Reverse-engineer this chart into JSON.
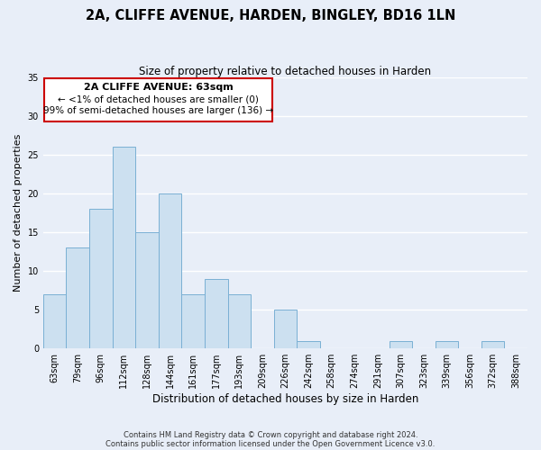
{
  "title": "2A, CLIFFE AVENUE, HARDEN, BINGLEY, BD16 1LN",
  "subtitle": "Size of property relative to detached houses in Harden",
  "xlabel": "Distribution of detached houses by size in Harden",
  "ylabel": "Number of detached properties",
  "bar_color": "#cce0f0",
  "bar_edge_color": "#7ab0d4",
  "bin_labels": [
    "63sqm",
    "79sqm",
    "96sqm",
    "112sqm",
    "128sqm",
    "144sqm",
    "161sqm",
    "177sqm",
    "193sqm",
    "209sqm",
    "226sqm",
    "242sqm",
    "258sqm",
    "274sqm",
    "291sqm",
    "307sqm",
    "323sqm",
    "339sqm",
    "356sqm",
    "372sqm",
    "388sqm"
  ],
  "values": [
    7,
    13,
    18,
    26,
    15,
    20,
    7,
    9,
    7,
    0,
    5,
    1,
    0,
    0,
    0,
    1,
    0,
    1,
    0,
    1,
    0
  ],
  "ylim": [
    0,
    35
  ],
  "yticks": [
    0,
    5,
    10,
    15,
    20,
    25,
    30,
    35
  ],
  "annotation_title": "2A CLIFFE AVENUE: 63sqm",
  "annotation_line1": "← <1% of detached houses are smaller (0)",
  "annotation_line2": "99% of semi-detached houses are larger (136) →",
  "annotation_box_color": "#ffffff",
  "annotation_box_edge": "#cc0000",
  "footer1": "Contains HM Land Registry data © Crown copyright and database right 2024.",
  "footer2": "Contains public sector information licensed under the Open Government Licence v3.0.",
  "background_color": "#e8eef8",
  "grid_color": "#ffffff",
  "title_fontsize": 10.5,
  "subtitle_fontsize": 8.5,
  "ylabel_fontsize": 8,
  "xlabel_fontsize": 8.5,
  "tick_fontsize": 7,
  "annot_title_fontsize": 8,
  "annot_text_fontsize": 7.5,
  "footer_fontsize": 6
}
